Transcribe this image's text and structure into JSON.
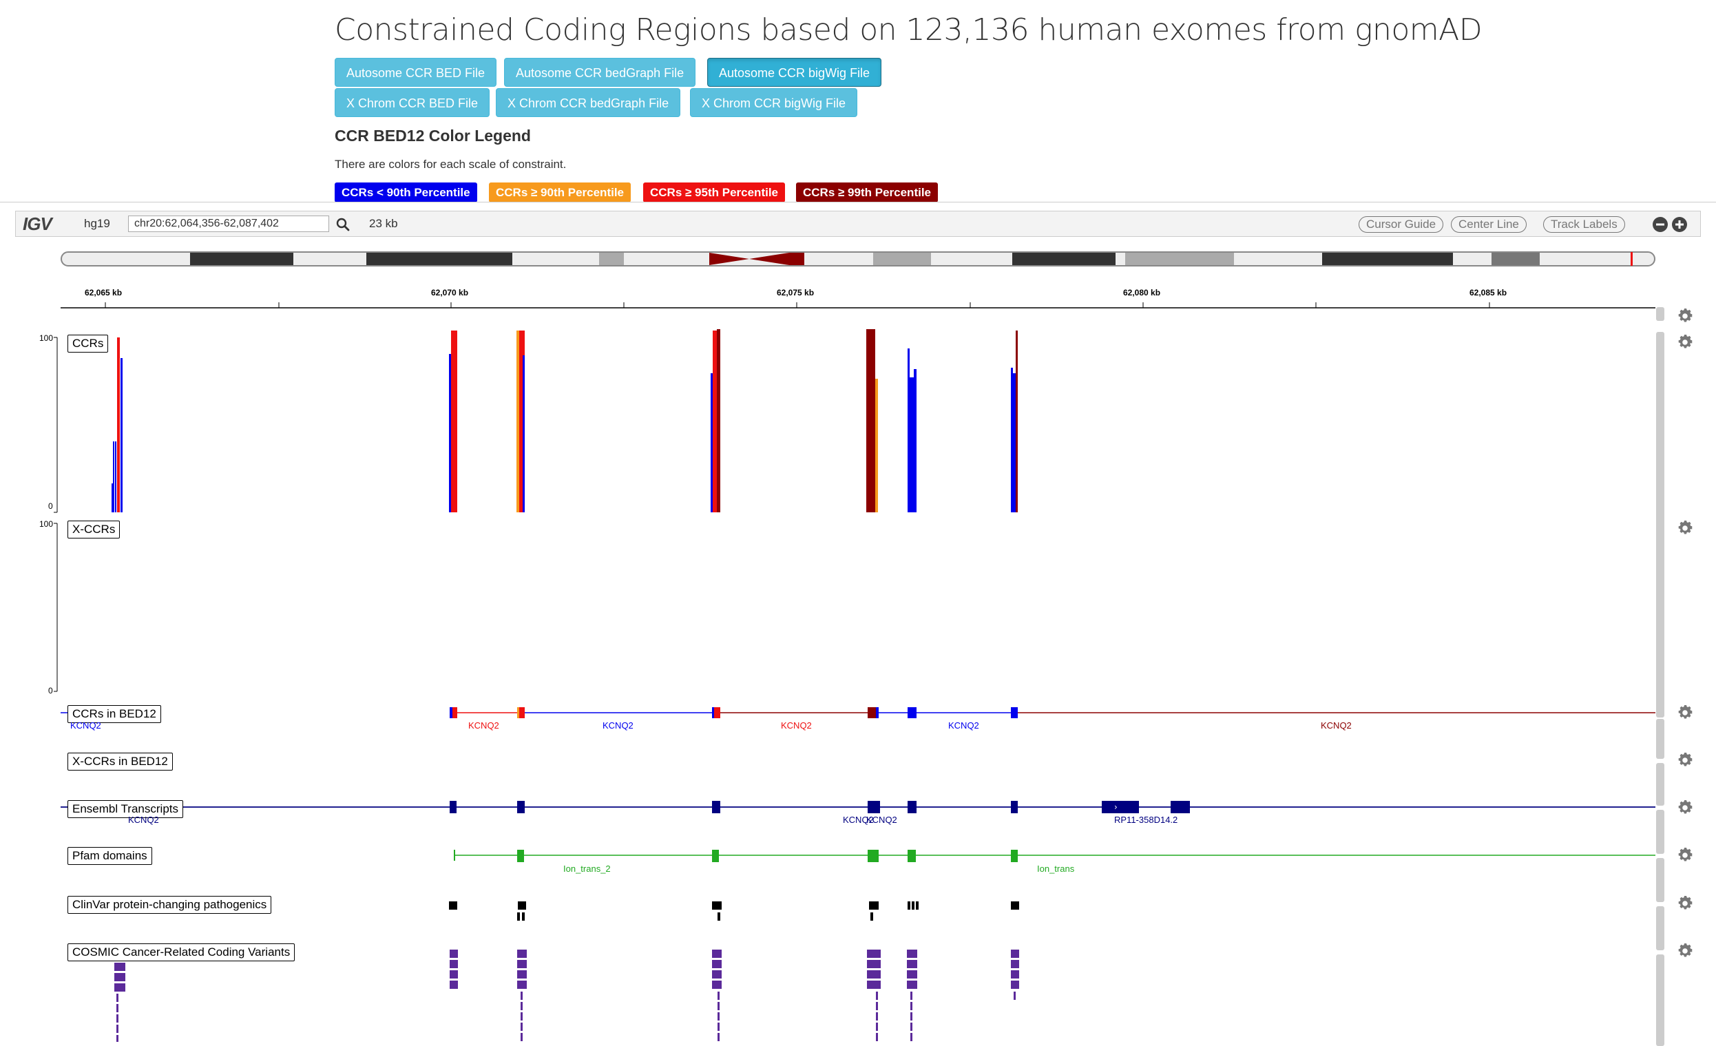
{
  "page": {
    "title": "Constrained Coding Regions based on 123,136 human exomes from gnomAD",
    "downloads": [
      {
        "label": "Autosome CCR BED File",
        "active": false
      },
      {
        "label": "Autosome CCR bedGraph File",
        "active": false
      },
      {
        "label": "Autosome CCR bigWig File",
        "active": true
      },
      {
        "label": "X Chrom CCR BED File",
        "active": false
      },
      {
        "label": "X Chrom CCR bedGraph File",
        "active": false
      },
      {
        "label": "X Chrom CCR bigWig File",
        "active": false
      }
    ],
    "legend_title": "CCR BED12 Color Legend",
    "legend_subtitle": "There are colors for each scale of constraint.",
    "legend": [
      {
        "label": "CCRs < 90th Percentile",
        "color": "#0000ee"
      },
      {
        "label": "CCRs ≥ 90th Percentile",
        "color": "#f79a1d"
      },
      {
        "label": "CCRs ≥ 95th Percentile",
        "color": "#ee1111"
      },
      {
        "label": "CCRs ≥ 99th Percentile",
        "color": "#8b0000"
      }
    ]
  },
  "igv": {
    "logo": "IGV",
    "genome": "hg19",
    "locus": "chr20:62,064,356-62,087,402",
    "window_size": "23 kb",
    "buttons": {
      "cursor_guide": "Cursor Guide",
      "center_line": "Center Line",
      "track_labels": "Track Labels"
    },
    "ruler_labels": [
      "62,065 kb",
      "62,070 kb",
      "62,075 kb",
      "62,080 kb",
      "62,085 kb"
    ],
    "tracks": {
      "ccrs": {
        "name": "CCRs",
        "max": "100",
        "min": "0"
      },
      "xccrs": {
        "name": "X-CCRs",
        "max": "100",
        "min": "0"
      },
      "ccr_bed12": {
        "name": "CCRs in BED12",
        "feature_labels": [
          "KCNQ2",
          "KCNQ2",
          "KCNQ2",
          "KCNQ2",
          "KCNQ2",
          "KCNQ2"
        ]
      },
      "xccr_bed12": {
        "name": "X-CCRs in BED12"
      },
      "ensembl": {
        "name": "Ensembl Transcripts",
        "feature_labels": [
          "KCNQ2",
          "KCNQ2",
          "KCNQ2",
          "RP11-358D14.2"
        ]
      },
      "pfam": {
        "name": "Pfam domains",
        "feature_labels": [
          "Ion_trans_2",
          "Ion_trans"
        ]
      },
      "clinvar": {
        "name": "ClinVar protein-changing pathogenics"
      },
      "cosmic": {
        "name": "COSMIC Cancer-Related Coding Variants"
      }
    },
    "colors": {
      "blue": "#0000ee",
      "orange": "#f79a1d",
      "red": "#ee1111",
      "darkred": "#8b0000",
      "ensembl": "#000080",
      "pfam": "#22aa22",
      "cosmic": "#5b2a9a"
    }
  }
}
